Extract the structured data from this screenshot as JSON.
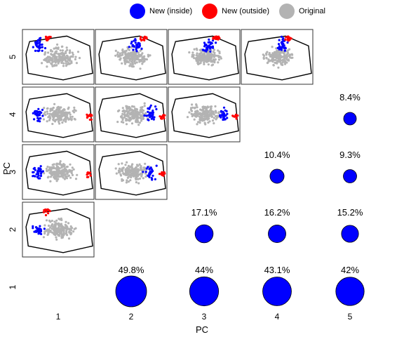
{
  "chart_data": {
    "type": "scatter",
    "xlabel": "PC",
    "ylabel": "PC",
    "pcs": [
      "1",
      "2",
      "3",
      "4",
      "5"
    ],
    "legend": {
      "position": "top",
      "entries": [
        {
          "label": "New (inside)",
          "color": "#0000ff"
        },
        {
          "label": "New (outside)",
          "color": "#ff0000"
        },
        {
          "label": "Original",
          "color": "#b3b3b3"
        }
      ]
    },
    "overlap": [
      {
        "label": "8.4%",
        "x_pc": 5,
        "y_pc": 4,
        "value": 8.4
      },
      {
        "label": "10.4%",
        "x_pc": 4,
        "y_pc": 3,
        "value": 10.4
      },
      {
        "label": "9.3%",
        "x_pc": 5,
        "y_pc": 3,
        "value": 9.3
      },
      {
        "label": "17.1%",
        "x_pc": 3,
        "y_pc": 2,
        "value": 17.1
      },
      {
        "label": "16.2%",
        "x_pc": 4,
        "y_pc": 2,
        "value": 16.2
      },
      {
        "label": "15.2%",
        "x_pc": 5,
        "y_pc": 2,
        "value": 15.2
      },
      {
        "label": "49.8%",
        "x_pc": 2,
        "y_pc": 1,
        "value": 49.8
      },
      {
        "label": "44%",
        "x_pc": 3,
        "y_pc": 1,
        "value": 44
      },
      {
        "label": "43.1%",
        "x_pc": 4,
        "y_pc": 1,
        "value": 43.1
      },
      {
        "label": "42%",
        "x_pc": 5,
        "y_pc": 1,
        "value": 42
      }
    ],
    "score_panels": [
      {
        "x_pc": 1,
        "y_pc": 5
      },
      {
        "x_pc": 2,
        "y_pc": 5
      },
      {
        "x_pc": 3,
        "y_pc": 5
      },
      {
        "x_pc": 4,
        "y_pc": 5
      },
      {
        "x_pc": 1,
        "y_pc": 4
      },
      {
        "x_pc": 2,
        "y_pc": 4
      },
      {
        "x_pc": 3,
        "y_pc": 4
      },
      {
        "x_pc": 1,
        "y_pc": 3
      },
      {
        "x_pc": 2,
        "y_pc": 3
      },
      {
        "x_pc": 1,
        "y_pc": 2
      }
    ],
    "colors": {
      "inside": "#0000ff",
      "outside": "#ff0000",
      "original": "#b3b3b3",
      "hull": "#000000"
    }
  }
}
